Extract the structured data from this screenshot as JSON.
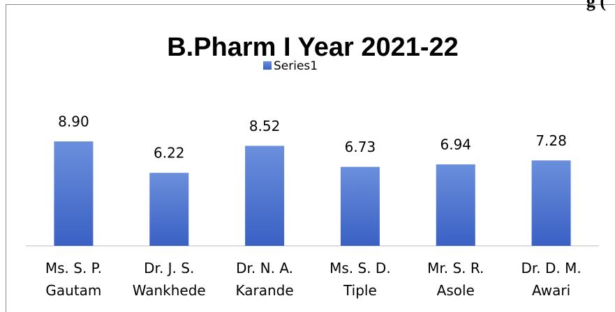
{
  "chart_data": {
    "type": "bar",
    "title": "B.Pharm I Year 2021-22",
    "annotation": "g (",
    "categories": [
      "Ms. S. P. Gautam",
      "Dr. J. S. Wankhede",
      "Dr. N. A. Karande",
      "Ms. S. D. Tiple",
      "Mr. S. R. Asole",
      "Dr. D. M. Awari"
    ],
    "series": [
      {
        "name": "Series1",
        "color": "#4472c4",
        "values": [
          8.9,
          6.22,
          8.52,
          6.73,
          6.94,
          7.28
        ],
        "value_labels": [
          "8.90",
          "6.22",
          "8.52",
          "6.73",
          "6.94",
          "7.28"
        ]
      }
    ],
    "ylim": [
      0,
      10
    ],
    "legend": "top"
  }
}
